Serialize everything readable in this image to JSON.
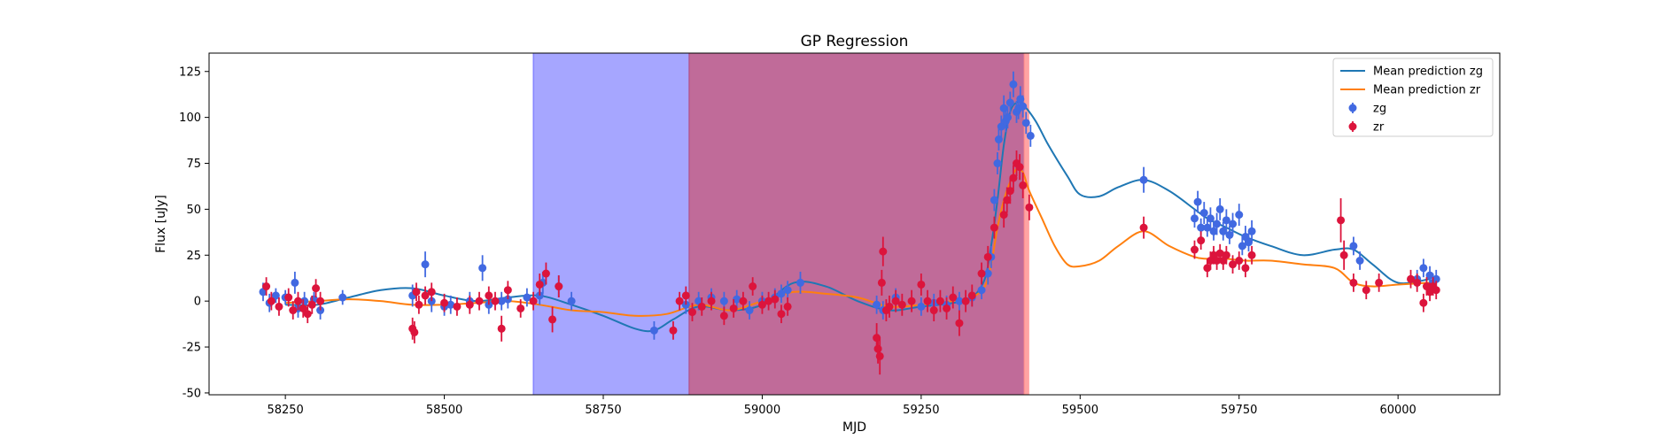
{
  "chart_data": {
    "type": "scatter",
    "title": "GP Regression",
    "xlabel": "MJD",
    "ylabel": "Flux [uJy]",
    "xlim": [
      58130,
      60160
    ],
    "ylim": [
      -51,
      135
    ],
    "xticks": [
      58250,
      58500,
      58750,
      59000,
      59250,
      59500,
      59750,
      60000
    ],
    "yticks": [
      -50,
      -25,
      0,
      25,
      50,
      75,
      100,
      125
    ],
    "legend_position": "top-right",
    "shaded_regions": [
      {
        "x_start": 58640,
        "x_end": 58885,
        "color": "#6b6bff",
        "opacity": 0.6
      },
      {
        "x_start": 58885,
        "x_end": 59412,
        "color": "#b0467f",
        "opacity": 0.8
      },
      {
        "x_start": 59412,
        "x_end": 59420,
        "color": "#ff8c8c",
        "opacity": 0.8
      }
    ],
    "series": [
      {
        "name": "Mean prediction zg",
        "kind": "line",
        "color": "#1f77b4",
        "x": [
          58250,
          58300,
          58350,
          58400,
          58450,
          58500,
          58550,
          58600,
          58650,
          58700,
          58750,
          58800,
          58830,
          58860,
          58900,
          58950,
          59000,
          59050,
          59100,
          59150,
          59200,
          59250,
          59300,
          59330,
          59350,
          59360,
          59370,
          59380,
          59390,
          59400,
          59410,
          59430,
          59450,
          59480,
          59500,
          59530,
          59560,
          59600,
          59640,
          59680,
          59700,
          59730,
          59760,
          59800,
          59850,
          59900,
          59930,
          59960,
          60000,
          60050
        ],
        "y": [
          -2,
          -2,
          2,
          6,
          7,
          3,
          0,
          2,
          3,
          -2,
          -8,
          -15,
          -16,
          -10,
          -3,
          -5,
          -2,
          10,
          8,
          0,
          -5,
          -3,
          -1,
          2,
          12,
          30,
          55,
          85,
          103,
          108,
          107,
          98,
          85,
          68,
          58,
          57,
          62,
          66,
          60,
          50,
          45,
          40,
          35,
          30,
          25,
          28,
          28,
          20,
          10,
          12
        ]
      },
      {
        "name": "Mean prediction zr",
        "kind": "line",
        "color": "#ff7f0e",
        "x": [
          58250,
          58300,
          58350,
          58400,
          58450,
          58500,
          58550,
          58600,
          58650,
          58700,
          58750,
          58800,
          58850,
          58900,
          58950,
          59000,
          59050,
          59100,
          59150,
          59200,
          59250,
          59300,
          59330,
          59350,
          59360,
          59370,
          59380,
          59390,
          59400,
          59410,
          59420,
          59440,
          59460,
          59480,
          59500,
          59530,
          59560,
          59600,
          59640,
          59680,
          59700,
          59730,
          59760,
          59800,
          59850,
          59900,
          59930,
          59960,
          60000,
          60050
        ],
        "y": [
          -1,
          0,
          1,
          0,
          -2,
          -2,
          -1,
          0,
          -2,
          -5,
          -6,
          -8,
          -7,
          -2,
          -5,
          0,
          5,
          4,
          2,
          -3,
          -2,
          0,
          2,
          8,
          20,
          40,
          55,
          65,
          72,
          70,
          60,
          45,
          30,
          20,
          19,
          22,
          30,
          38,
          30,
          24,
          23,
          23,
          22,
          22,
          20,
          18,
          10,
          8,
          9,
          10
        ]
      },
      {
        "name": "zg",
        "kind": "points",
        "color": "#4169e1",
        "x": [
          58215,
          58225,
          58235,
          58250,
          58265,
          58270,
          58280,
          58295,
          58305,
          58340,
          58450,
          58470,
          58480,
          58500,
          58510,
          58540,
          58560,
          58570,
          58590,
          58600,
          58630,
          58650,
          58655,
          58680,
          58700,
          58830,
          58880,
          58900,
          58920,
          58940,
          58960,
          58980,
          59000,
          59020,
          59030,
          59040,
          59060,
          59180,
          59190,
          59210,
          59250,
          59270,
          59290,
          59310,
          59330,
          59345,
          59355,
          59360,
          59365,
          59370,
          59372,
          59376,
          59380,
          59383,
          59386,
          59390,
          59395,
          59400,
          59403,
          59406,
          59410,
          59415,
          59422,
          59600,
          59680,
          59685,
          59690,
          59695,
          59700,
          59705,
          59710,
          59715,
          59720,
          59725,
          59730,
          59735,
          59740,
          59750,
          59755,
          59760,
          59765,
          59770,
          59930,
          59940,
          60030,
          60040,
          60050,
          60055,
          60060
        ],
        "y": [
          5,
          -1,
          3,
          2,
          10,
          -4,
          0,
          1,
          -5,
          2,
          3,
          20,
          0,
          -3,
          -2,
          0,
          18,
          -2,
          0,
          1,
          2,
          3,
          10,
          8,
          0,
          -16,
          -2,
          0,
          2,
          0,
          1,
          -5,
          0,
          2,
          4,
          6,
          10,
          -2,
          -5,
          2,
          -3,
          -1,
          -2,
          0,
          2,
          6,
          15,
          24,
          55,
          75,
          88,
          95,
          105,
          98,
          100,
          108,
          118,
          103,
          105,
          110,
          106,
          97,
          90,
          66,
          45,
          54,
          40,
          48,
          40,
          45,
          38,
          42,
          50,
          38,
          44,
          36,
          42,
          47,
          30,
          35,
          32,
          38,
          30,
          22,
          12,
          18,
          14,
          10,
          12
        ],
        "err": [
          5,
          5,
          4,
          4,
          6,
          5,
          5,
          4,
          5,
          4,
          6,
          7,
          6,
          5,
          5,
          5,
          7,
          5,
          5,
          5,
          5,
          5,
          6,
          6,
          5,
          5,
          5,
          5,
          5,
          5,
          5,
          5,
          5,
          5,
          5,
          5,
          6,
          5,
          5,
          5,
          5,
          5,
          5,
          5,
          5,
          5,
          6,
          6,
          6,
          6,
          6,
          6,
          7,
          6,
          6,
          6,
          7,
          6,
          6,
          7,
          6,
          6,
          6,
          7,
          5,
          6,
          5,
          6,
          5,
          6,
          5,
          6,
          6,
          5,
          6,
          5,
          6,
          6,
          5,
          6,
          5,
          6,
          5,
          5,
          5,
          5,
          5,
          5,
          5
        ]
      },
      {
        "name": "zr",
        "kind": "points",
        "color": "#dc143c",
        "x": [
          58220,
          58228,
          58240,
          58255,
          58262,
          58270,
          58278,
          58285,
          58292,
          58298,
          58305,
          58450,
          58453,
          58456,
          58460,
          58470,
          58480,
          58500,
          58520,
          58540,
          58555,
          58570,
          58580,
          58590,
          58600,
          58620,
          58640,
          58650,
          58660,
          58670,
          58680,
          58860,
          58870,
          58880,
          58890,
          58905,
          58920,
          58940,
          58955,
          58970,
          58985,
          59000,
          59010,
          59020,
          59030,
          59040,
          59180,
          59182,
          59185,
          59188,
          59190,
          59195,
          59200,
          59210,
          59220,
          59235,
          59250,
          59260,
          59270,
          59280,
          59290,
          59300,
          59310,
          59320,
          59330,
          59345,
          59355,
          59365,
          59380,
          59385,
          59390,
          59395,
          59400,
          59405,
          59410,
          59420,
          59600,
          59680,
          59690,
          59700,
          59705,
          59710,
          59715,
          59720,
          59725,
          59730,
          59740,
          59750,
          59760,
          59770,
          59910,
          59915,
          59930,
          59950,
          59970,
          60020,
          60030,
          60040,
          60045,
          60050,
          60055,
          60060
        ],
        "y": [
          8,
          0,
          -3,
          2,
          -5,
          0,
          -4,
          -7,
          -2,
          7,
          0,
          -15,
          -17,
          5,
          -2,
          3,
          5,
          -1,
          -3,
          -2,
          0,
          3,
          0,
          -15,
          6,
          -4,
          0,
          9,
          15,
          -10,
          8,
          -16,
          0,
          3,
          -6,
          -3,
          0,
          -8,
          -4,
          0,
          8,
          -2,
          0,
          1,
          -7,
          -3,
          -20,
          -26,
          -30,
          10,
          27,
          -5,
          -3,
          0,
          -2,
          0,
          9,
          0,
          -5,
          0,
          -4,
          2,
          -12,
          0,
          3,
          15,
          24,
          40,
          47,
          55,
          60,
          67,
          75,
          73,
          63,
          51,
          40,
          28,
          33,
          18,
          22,
          25,
          22,
          26,
          22,
          25,
          20,
          22,
          18,
          25,
          44,
          25,
          10,
          6,
          10,
          12,
          10,
          -1,
          8,
          5,
          8,
          6
        ],
        "err": [
          5,
          5,
          5,
          5,
          5,
          5,
          5,
          5,
          5,
          5,
          5,
          6,
          6,
          5,
          5,
          5,
          5,
          5,
          5,
          5,
          5,
          5,
          5,
          7,
          5,
          5,
          5,
          6,
          6,
          7,
          6,
          5,
          5,
          5,
          5,
          5,
          5,
          5,
          5,
          5,
          5,
          5,
          5,
          5,
          5,
          5,
          8,
          8,
          10,
          7,
          8,
          6,
          6,
          6,
          6,
          6,
          6,
          6,
          6,
          6,
          6,
          6,
          7,
          6,
          6,
          6,
          6,
          6,
          7,
          7,
          7,
          7,
          7,
          7,
          7,
          7,
          6,
          5,
          5,
          5,
          5,
          5,
          5,
          5,
          5,
          5,
          5,
          5,
          5,
          5,
          12,
          8,
          5,
          5,
          5,
          5,
          5,
          5,
          5,
          5,
          5,
          5
        ]
      }
    ]
  }
}
